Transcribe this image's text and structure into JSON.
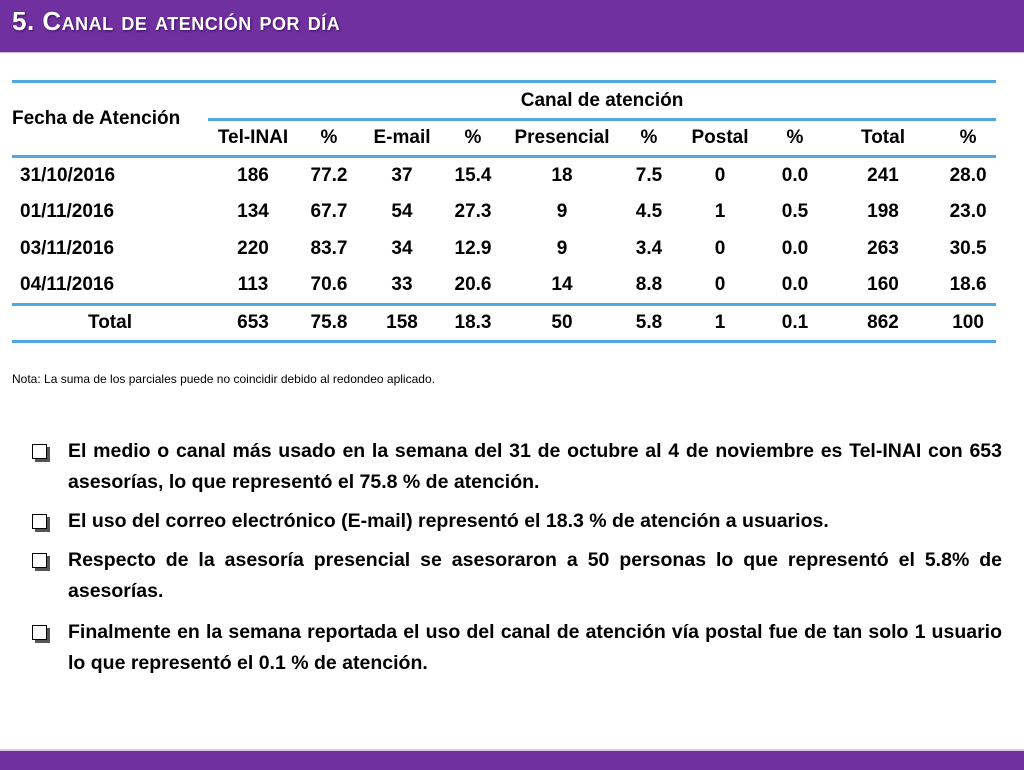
{
  "header": {
    "title": "5. Canal de atención por día"
  },
  "table": {
    "row_header": "Fecha de Atención",
    "group_header": "Canal de atención",
    "columns": [
      "Tel-INAI",
      "%",
      "E-mail",
      "%",
      "Presencial",
      "%",
      "Postal",
      "%",
      "Total",
      "%"
    ],
    "rows": [
      {
        "date": "31/10/2016",
        "values": [
          "186",
          "77.2",
          "37",
          "15.4",
          "18",
          "7.5",
          "0",
          "0.0",
          "241",
          "28.0"
        ]
      },
      {
        "date": "01/11/2016",
        "values": [
          "134",
          "67.7",
          "54",
          "27.3",
          "9",
          "4.5",
          "1",
          "0.5",
          "198",
          "23.0"
        ]
      },
      {
        "date": "03/11/2016",
        "values": [
          "220",
          "83.7",
          "34",
          "12.9",
          "9",
          "3.4",
          "0",
          "0.0",
          "263",
          "30.5"
        ]
      },
      {
        "date": "04/11/2016",
        "values": [
          "113",
          "70.6",
          "33",
          "20.6",
          "14",
          "8.8",
          "0",
          "0.0",
          "160",
          "18.6"
        ]
      }
    ],
    "total": {
      "label": "Total",
      "values": [
        "653",
        "75.8",
        "158",
        "18.3",
        "50",
        "5.8",
        "1",
        "0.1",
        "862",
        "100"
      ]
    }
  },
  "note": "Nota: La suma de los parciales puede no coincidir debido al redondeo aplicado.",
  "bullets": [
    "El medio o canal más usado en la semana del 31 de octubre al 4 de noviembre es Tel-INAI con 653 asesorías, lo que representó el 75.8 % de atención.",
    "El uso del correo electrónico (E-mail) representó el 18.3 % de atención a usuarios.",
    "Respecto de la asesoría presencial se asesoraron a 50 personas lo que representó el 5.8% de asesorías.",
    "Finalmente en la semana reportada el uso del canal de atención vía postal fue de tan solo 1 usuario lo que representó el 0.1 % de atención."
  ],
  "colors": {
    "accent": "#7030a0",
    "rule": "#4fa8df"
  }
}
